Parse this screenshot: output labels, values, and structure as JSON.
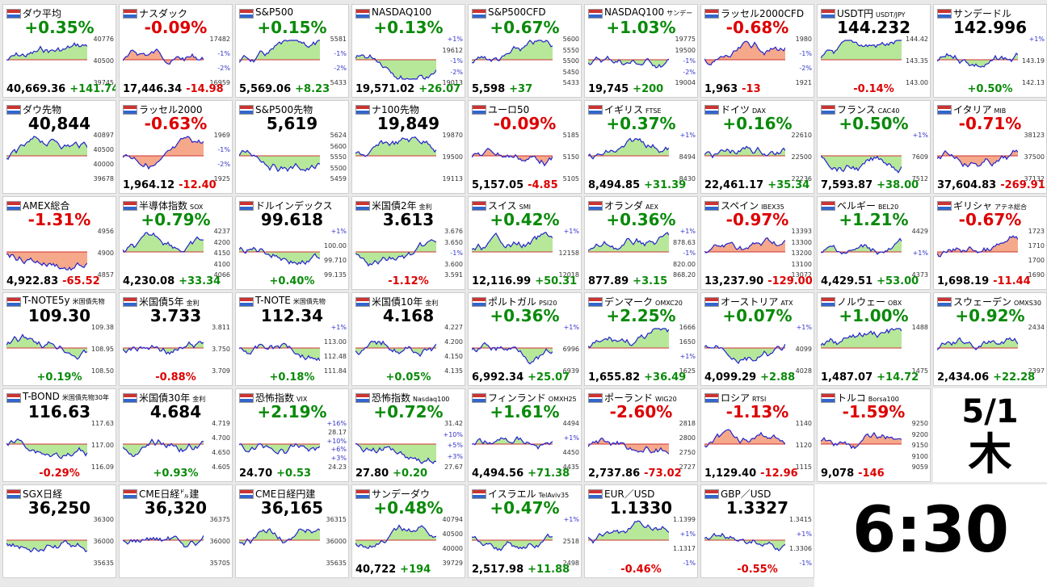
{
  "tiles": [
    {
      "name": "ダウ平均",
      "top": "+0.35%",
      "labels": [
        "40776",
        "40500",
        "39745"
      ],
      "bottom": [
        "40,669.36",
        "+141.74"
      ]
    },
    {
      "name": "ナスダック",
      "top": "-0.09%",
      "labels": [
        "17482",
        "-1%",
        "-2%",
        "16959"
      ],
      "bottom": [
        "17,446.34",
        "-14.98"
      ]
    },
    {
      "name": "S&P500",
      "top": "+0.15%",
      "labels": [
        "5581",
        "-1%",
        "-2%",
        "5433"
      ],
      "bottom": [
        "5,569.06",
        "+8.23"
      ]
    },
    {
      "name": "NASDAQ100",
      "top": "+0.13%",
      "labels": [
        "+1%",
        "19612",
        "-1%",
        "-2%",
        "19013"
      ],
      "bottom": [
        "19,571.02",
        "+26.07"
      ]
    },
    {
      "name": "S&P500CFD",
      "top": "+0.67%",
      "labels": [
        "5600",
        "5550",
        "5500",
        "5450",
        "5433"
      ],
      "bottom": [
        "5,598",
        "+37"
      ]
    },
    {
      "name": "NASDAQ100",
      "sub": "サンデー",
      "top": "+1.03%",
      "labels": [
        "19775",
        "19500",
        "-1%",
        "-2%",
        "19004"
      ],
      "bottom": [
        "19,745",
        "+200"
      ]
    },
    {
      "name": "ラッセル2000CFD",
      "top": "-0.68%",
      "labels": [
        "1980",
        "-1%",
        "-2%",
        "1921"
      ],
      "bottom": [
        "1,963",
        "-13"
      ]
    },
    {
      "name": "USDT円",
      "sub": "USDT/JPY",
      "top": "144.232",
      "labels": [
        "144.42",
        "143.35",
        "143.00"
      ],
      "bottom": [
        "-0.14%"
      ]
    },
    {
      "name": "サンデードル",
      "top": "142.996",
      "labels": [
        "+1%",
        "143.19",
        "142.13"
      ],
      "bottom": [
        "+0.50%"
      ]
    },
    {
      "name": "ダウ先物",
      "top": "40,844",
      "labels": [
        "40897",
        "40500",
        "40000",
        "39678"
      ],
      "bottom": []
    },
    {
      "name": "ラッセル2000",
      "top": "-0.63%",
      "labels": [
        "1969",
        "-1%",
        "-2%",
        "1925"
      ],
      "bottom": [
        "1,964.12",
        "-12.40"
      ]
    },
    {
      "name": "S&P500先物",
      "top": "5,619",
      "labels": [
        "5624",
        "5600",
        "5550",
        "5500",
        "5459"
      ],
      "bottom": []
    },
    {
      "name": "ナ100先物",
      "top": "19,849",
      "labels": [
        "19870",
        "19500",
        "19113"
      ],
      "bottom": []
    },
    {
      "name": "ユーロ50",
      "top": "-0.09%",
      "labels": [
        "5185",
        "5150",
        "5105"
      ],
      "bottom": [
        "5,157.05",
        "-4.85"
      ]
    },
    {
      "name": "イギリス",
      "sub": "FTSE",
      "top": "+0.37%",
      "labels": [
        "+1%",
        "8494",
        "8430"
      ],
      "bottom": [
        "8,494.85",
        "+31.39"
      ]
    },
    {
      "name": "ドイツ",
      "sub": "DAX",
      "top": "+0.16%",
      "labels": [
        "22610",
        "22500",
        "22236"
      ],
      "bottom": [
        "22,461.17",
        "+35.34"
      ]
    },
    {
      "name": "フランス",
      "sub": "CAC40",
      "top": "+0.50%",
      "labels": [
        "+1%",
        "7609",
        "7512"
      ],
      "bottom": [
        "7,593.87",
        "+38.00"
      ]
    },
    {
      "name": "イタリア",
      "sub": "MIB",
      "top": "-0.71%",
      "labels": [
        "38123",
        "37500",
        "37132"
      ],
      "bottom": [
        "37,604.83",
        "-269.91"
      ]
    },
    {
      "name": "AMEX総合",
      "top": "-1.31%",
      "labels": [
        "4956",
        "4900",
        "4857"
      ],
      "bottom": [
        "4,922.83",
        "-65.52"
      ]
    },
    {
      "name": "半導体指数",
      "sub": "SOX",
      "top": "+0.79%",
      "labels": [
        "4237",
        "4200",
        "4150",
        "4100",
        "4066"
      ],
      "bottom": [
        "4,230.08",
        "+33.34"
      ]
    },
    {
      "name": "ドルインデックス",
      "top": "99.618",
      "labels": [
        "+1%",
        "100.00",
        "99.710",
        "99.135"
      ],
      "bottom": [
        "+0.40%"
      ]
    },
    {
      "name": "米国債2年",
      "sub": "金利",
      "top": "3.613",
      "labels": [
        "3.676",
        "3.650",
        "-1%",
        "3.600",
        "3.591"
      ],
      "bottom": [
        "-1.12%"
      ]
    },
    {
      "name": "スイス",
      "sub": "SMI",
      "top": "+0.42%",
      "labels": [
        "+1%",
        "12158",
        "12018"
      ],
      "bottom": [
        "12,116.99",
        "+50.31"
      ]
    },
    {
      "name": "オランダ",
      "sub": "AEX",
      "top": "+0.36%",
      "labels": [
        "+1%",
        "878.63",
        "-1%",
        "820.00",
        "868.20"
      ],
      "bottom": [
        "877.89",
        "+3.15"
      ]
    },
    {
      "name": "スペイン",
      "sub": "IBEX35",
      "top": "-0.97%",
      "labels": [
        "13393",
        "13300",
        "13200",
        "13100",
        "13072"
      ],
      "bottom": [
        "13,237.90",
        "-129.00"
      ]
    },
    {
      "name": "ベルギー",
      "sub": "BEL20",
      "top": "+1.21%",
      "labels": [
        "4429",
        "+1%",
        "4373"
      ],
      "bottom": [
        "4,429.51",
        "+53.00"
      ]
    },
    {
      "name": "ギリシャ",
      "sub": "アテネ総合",
      "top": "-0.67%",
      "labels": [
        "1723",
        "1710",
        "1700",
        "1690"
      ],
      "bottom": [
        "1,698.19",
        "-11.44"
      ]
    },
    {
      "name": "T-NOTE5y",
      "sub": "米国債先物",
      "top": "109.30",
      "labels": [
        "109.38",
        "108.95",
        "108.50"
      ],
      "bottom": [
        "+0.19%"
      ]
    },
    {
      "name": "米国債5年",
      "sub": "金利",
      "top": "3.733",
      "labels": [
        "3.811",
        "3.750",
        "3.709"
      ],
      "bottom": [
        "-0.88%"
      ]
    },
    {
      "name": "T-NOTE",
      "sub": "米国債先物",
      "top": "112.34",
      "labels": [
        "+1%",
        "113.00",
        "112.48",
        "111.84"
      ],
      "bottom": [
        "+0.18%"
      ]
    },
    {
      "name": "米国債10年",
      "sub": "金利",
      "top": "4.168",
      "labels": [
        "4.227",
        "4.200",
        "4.150",
        "4.135"
      ],
      "bottom": [
        "+0.05%"
      ]
    },
    {
      "name": "ポルトガル",
      "sub": "PSI20",
      "top": "+0.36%",
      "labels": [
        "+1%",
        "6996",
        "6939"
      ],
      "bottom": [
        "6,992.34",
        "+25.07"
      ]
    },
    {
      "name": "デンマーク",
      "sub": "OMXC20",
      "top": "+2.25%",
      "labels": [
        "1666",
        "1650",
        "+1%",
        "1625"
      ],
      "bottom": [
        "1,655.82",
        "+36.49"
      ]
    },
    {
      "name": "オーストリア",
      "sub": "ATX",
      "top": "+0.07%",
      "labels": [
        "+1%",
        "4099",
        "4028"
      ],
      "bottom": [
        "4,099.29",
        "+2.88"
      ]
    },
    {
      "name": "ノルウェー",
      "sub": "OBX",
      "top": "+1.00%",
      "labels": [
        "1488",
        "1475"
      ],
      "bottom": [
        "1,487.07",
        "+14.72"
      ]
    },
    {
      "name": "スウェーデン",
      "sub": "OMXS30",
      "top": "+0.92%",
      "labels": [
        "2434",
        "2397"
      ],
      "bottom": [
        "2,434.06",
        "+22.28"
      ]
    },
    {
      "name": "T-BOND",
      "sub": "米国債先物30年",
      "top": "116.63",
      "labels": [
        "117.63",
        "117.00",
        "116.09"
      ],
      "bottom": [
        "-0.29%"
      ]
    },
    {
      "name": "米国債30年",
      "sub": "金利",
      "top": "4.684",
      "labels": [
        "4.719",
        "4.700",
        "4.650",
        "4.605"
      ],
      "bottom": [
        "+0.93%"
      ]
    },
    {
      "name": "恐怖指数",
      "sub": "VIX",
      "top": "+2.19%",
      "labels": [
        "+16%",
        "28.17",
        "+10%",
        "+6%",
        "+3%",
        "24.23"
      ],
      "bottom": [
        "24.70",
        "+0.53"
      ]
    },
    {
      "name": "恐怖指数",
      "sub": "Nasdaq100",
      "top": "+0.72%",
      "labels": [
        "31.42",
        "+10%",
        "+5%",
        "+3%",
        "27.67"
      ],
      "bottom": [
        "27.80",
        "+0.20"
      ]
    },
    {
      "name": "フィンランド",
      "sub": "OMXH25",
      "top": "+1.61%",
      "labels": [
        "4494",
        "+1%",
        "4450",
        "4435"
      ],
      "bottom": [
        "4,494.56",
        "+71.38"
      ]
    },
    {
      "name": "ポーランド",
      "sub": "WIG20",
      "top": "-2.60%",
      "labels": [
        "2818",
        "2800",
        "2750",
        "2727"
      ],
      "bottom": [
        "2,737.86",
        "-73.02"
      ]
    },
    {
      "name": "ロシア",
      "sub": "RTSI",
      "top": "-1.13%",
      "labels": [
        "1140",
        "1120",
        "1115"
      ],
      "bottom": [
        "1,129.40",
        "-12.96"
      ]
    },
    {
      "name": "トルコ",
      "sub": "Borsa100",
      "top": "-1.59%",
      "labels": [
        "9250",
        "9200",
        "9150",
        "9100",
        "9059"
      ],
      "bottom": [
        "9,078",
        "-146"
      ]
    },
    {
      "name": "SGX日経",
      "top": "36,250",
      "labels": [
        "36300",
        "36000",
        "35635"
      ],
      "bottom": []
    },
    {
      "name": "CME日経㌦建",
      "top": "36,320",
      "labels": [
        "36375",
        "36000",
        "35705"
      ],
      "bottom": []
    },
    {
      "name": "CME日経円建",
      "top": "36,165",
      "labels": [
        "36315",
        "36000",
        "35635"
      ],
      "bottom": []
    },
    {
      "name": "サンデーダウ",
      "top": "+0.48%",
      "labels": [
        "40794",
        "40500",
        "40000",
        "39729"
      ],
      "bottom": [
        "40,722",
        "+194"
      ]
    },
    {
      "name": "イスラエル",
      "sub": "TelAviv35",
      "top": "+0.47%",
      "labels": [
        "+1%",
        "2518",
        "2498"
      ],
      "bottom": [
        "2,517.98",
        "+11.88"
      ]
    },
    {
      "name": "EUR／USD",
      "top": "1.1330",
      "labels": [
        "1.1399",
        "+1%",
        "1.1317",
        "-1%"
      ],
      "bottom": [
        "-0.46%"
      ]
    },
    {
      "name": "GBP／USD",
      "top": "1.3327",
      "labels": [
        "1.3415",
        "+1%",
        "1.3306",
        "-1%"
      ],
      "bottom": [
        "-0.55%"
      ]
    }
  ],
  "date": {
    "day": "5/1",
    "weekday": "木"
  },
  "clock": "6:30"
}
